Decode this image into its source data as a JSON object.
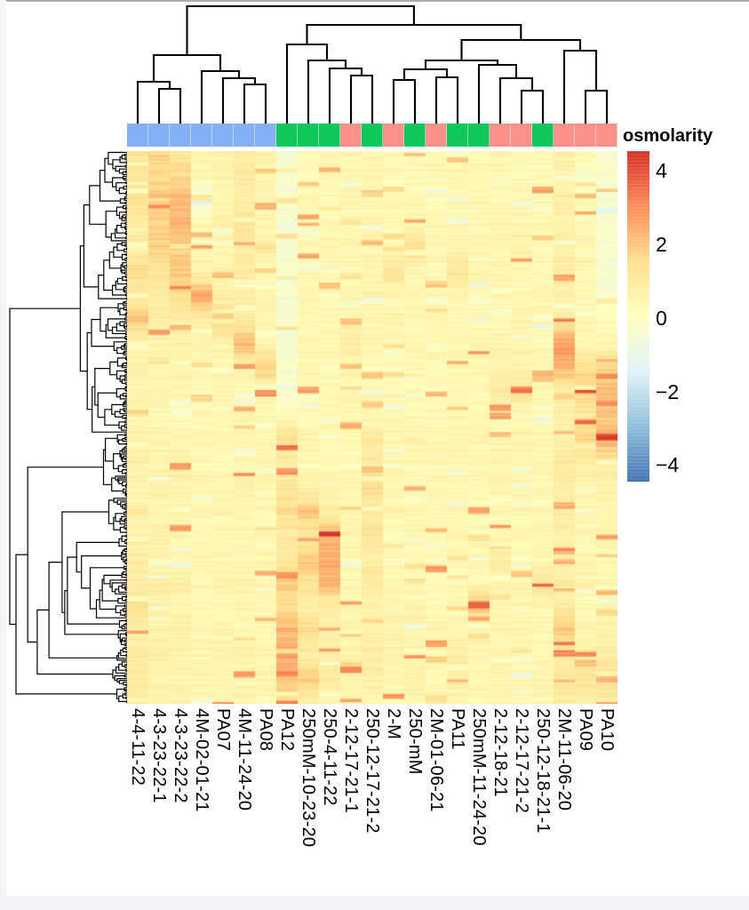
{
  "window": {
    "top_edge_color": "#ACACAE",
    "gutter_color": "#F5F5F8"
  },
  "chart_data": {
    "type": "heatmap",
    "title": "",
    "annotation_title": "osmolarity",
    "annotation_colors": {
      "blue": "#85B1F4",
      "green": "#10C75C",
      "salmon": "#FA9289"
    },
    "columns": [
      {
        "label": "4-4-11-22",
        "group": "blue"
      },
      {
        "label": "4-3-23-22-1",
        "group": "blue"
      },
      {
        "label": "4-3-23-22-2",
        "group": "blue"
      },
      {
        "label": "4M-02-01-21",
        "group": "blue"
      },
      {
        "label": "PA07",
        "group": "blue"
      },
      {
        "label": "4M-11-24-20",
        "group": "blue"
      },
      {
        "label": "PA08",
        "group": "blue"
      },
      {
        "label": "PA12",
        "group": "green"
      },
      {
        "label": "250mM-10-23-20",
        "group": "green"
      },
      {
        "label": "250-4-11-22",
        "group": "green"
      },
      {
        "label": "2-12-17-21-1",
        "group": "salmon"
      },
      {
        "label": "250-12-17-21-2",
        "group": "green"
      },
      {
        "label": "2-M",
        "group": "salmon"
      },
      {
        "label": "250-mM",
        "group": "green"
      },
      {
        "label": "2M-01-06-21",
        "group": "salmon"
      },
      {
        "label": "PA11",
        "group": "green"
      },
      {
        "label": "250mM-11-24-20",
        "group": "green"
      },
      {
        "label": "2-12-18-21",
        "group": "salmon"
      },
      {
        "label": "2-12-17-21-2",
        "group": "salmon"
      },
      {
        "label": "250-12-18-21-1",
        "group": "green"
      },
      {
        "label": "2M-11-06-20",
        "group": "salmon"
      },
      {
        "label": "PA09",
        "group": "salmon"
      },
      {
        "label": "PA10",
        "group": "salmon"
      }
    ],
    "colorbar": {
      "tick_labels": [
        "4",
        "2",
        "0",
        "−2",
        "−4"
      ],
      "tick_values": [
        4,
        2,
        0,
        -2,
        -4
      ],
      "domain": [
        -4.45,
        4.53
      ],
      "palette": [
        "#D73027",
        "#FC8D59",
        "#FEE090",
        "#FFFFBF",
        "#E0F3F8",
        "#91BFDB",
        "#4575B4"
      ]
    },
    "column_dendrogram": {
      "h": 7,
      "c": [
        {
          "h": 62,
          "c": [
            {
              "h": 92,
              "c": [
                {
                  "leaf": 0
                },
                {
                  "h": 100,
                  "c": [
                    {
                      "leaf": 1
                    },
                    {
                      "leaf": 2
                    }
                  ]
                }
              ]
            },
            {
              "h": 80,
              "c": [
                {
                  "leaf": 3
                },
                {
                  "h": 88,
                  "c": [
                    {
                      "leaf": 4
                    },
                    {
                      "h": 95,
                      "c": [
                        {
                          "leaf": 5
                        },
                        {
                          "leaf": 6
                        }
                      ]
                    }
                  ]
                }
              ]
            }
          ]
        },
        {
          "h": 28,
          "c": [
            {
              "h": 50,
              "c": [
                {
                  "leaf": 7
                },
                {
                  "h": 68,
                  "c": [
                    {
                      "leaf": 8
                    },
                    {
                      "h": 77,
                      "c": [
                        {
                          "leaf": 9
                        },
                        {
                          "h": 85,
                          "c": [
                            {
                              "leaf": 10
                            },
                            {
                              "leaf": 11
                            }
                          ]
                        }
                      ]
                    }
                  ]
                }
              ]
            },
            {
              "h": 45,
              "c": [
                {
                  "h": 68,
                  "c": [
                    {
                      "h": 78,
                      "c": [
                        {
                          "h": 90,
                          "c": [
                            {
                              "leaf": 12
                            },
                            {
                              "leaf": 13
                            }
                          ]
                        },
                        {
                          "h": 87,
                          "c": [
                            {
                              "leaf": 14
                            },
                            {
                              "leaf": 15
                            }
                          ]
                        }
                      ]
                    },
                    {
                      "h": 73,
                      "c": [
                        {
                          "leaf": 16
                        },
                        {
                          "h": 88,
                          "c": [
                            {
                              "leaf": 17
                            },
                            {
                              "h": 102,
                              "c": [
                                {
                                  "leaf": 18
                                },
                                {
                                  "leaf": 19
                                }
                              ]
                            }
                          ]
                        }
                      ]
                    }
                  ]
                },
                {
                  "h": 57,
                  "c": [
                    {
                      "leaf": 20
                    },
                    {
                      "h": 102,
                      "c": [
                        {
                          "leaf": 21
                        },
                        {
                          "leaf": 22
                        }
                      ]
                    }
                  ]
                }
              ]
            }
          ]
        }
      ]
    },
    "row_band_values_by_column": [
      [
        1.3,
        1.1,
        1.4,
        0.9,
        1.0,
        1.6,
        0.8,
        2.1,
        0.5,
        0.7,
        0.6,
        0.5,
        0.6,
        0.8,
        0.5,
        0.9,
        0.6,
        1.1,
        0.8,
        1.4,
        0.7,
        0.9,
        1.0,
        0.8
      ],
      [
        1.8,
        1.5,
        2.0,
        1.7,
        1.9,
        1.2,
        1.0,
        0.8,
        0.6,
        0.5,
        0.6,
        0.4,
        0.5,
        0.6,
        0.7,
        0.5,
        0.8,
        0.6,
        0.9,
        0.7,
        0.6,
        0.8,
        0.5,
        0.7
      ],
      [
        1.2,
        1.6,
        2.2,
        2.4,
        1.8,
        2.0,
        1.4,
        0.9,
        0.7,
        0.5,
        0.6,
        0.5,
        0.4,
        0.6,
        0.5,
        0.7,
        0.6,
        0.5,
        0.8,
        0.6,
        0.7,
        0.5,
        0.6,
        0.5
      ],
      [
        0.6,
        0.4,
        -0.6,
        0.5,
        0.7,
        0.5,
        2.6,
        0.8,
        0.5,
        0.3,
        0.4,
        0.5,
        0.3,
        0.4,
        0.5,
        0.4,
        0.3,
        0.5,
        0.4,
        0.3,
        0.5,
        0.4,
        0.5,
        0.4
      ],
      [
        0.7,
        0.5,
        0.6,
        0.8,
        0.5,
        0.6,
        0.7,
        1.9,
        0.6,
        0.4,
        0.5,
        0.4,
        0.5,
        0.3,
        0.4,
        0.5,
        0.4,
        0.5,
        0.6,
        0.4,
        0.5,
        0.6,
        0.5,
        0.4
      ],
      [
        0.9,
        1.1,
        0.8,
        1.3,
        0.9,
        1.0,
        0.8,
        0.9,
        2.3,
        0.6,
        0.5,
        0.6,
        0.5,
        0.4,
        0.6,
        0.5,
        0.4,
        0.5,
        0.6,
        0.5,
        0.4,
        0.6,
        0.5,
        0.6
      ],
      [
        0.6,
        0.5,
        0.7,
        0.5,
        0.6,
        0.4,
        0.5,
        0.6,
        0.5,
        1.8,
        0.5,
        0.4,
        0.3,
        0.5,
        0.4,
        0.3,
        0.4,
        0.5,
        0.4,
        0.5,
        0.3,
        0.4,
        0.5,
        0.4
      ],
      [
        -0.3,
        -0.4,
        -0.2,
        -0.5,
        -0.3,
        -0.4,
        -0.2,
        -0.3,
        -0.4,
        -0.2,
        -0.3,
        0.2,
        1.4,
        0.8,
        1.2,
        1.6,
        0.9,
        1.3,
        1.8,
        1.5,
        2.2,
        2.6,
        2.0,
        1.2
      ],
      [
        0.4,
        0.3,
        0.5,
        0.4,
        0.3,
        0.4,
        0.5,
        0.3,
        0.4,
        0.5,
        0.4,
        0.3,
        0.5,
        0.4,
        0.6,
        2.1,
        1.0,
        2.0,
        1.2,
        0.8,
        1.5,
        0.9,
        1.7,
        0.8
      ],
      [
        0.4,
        0.5,
        0.3,
        0.4,
        0.5,
        0.4,
        0.3,
        0.5,
        0.4,
        0.3,
        0.4,
        0.5,
        0.3,
        0.4,
        0.5,
        0.8,
        2.4,
        2.6,
        2.2,
        1.0,
        0.6,
        0.8,
        0.9,
        0.6
      ],
      [
        0.5,
        0.4,
        0.6,
        0.4,
        0.5,
        0.3,
        0.4,
        0.6,
        0.9,
        0.5,
        0.4,
        0.5,
        0.4,
        0.3,
        0.5,
        0.4,
        0.6,
        0.5,
        0.4,
        0.5,
        0.4,
        0.6,
        0.5,
        0.4
      ],
      [
        0.4,
        0.5,
        0.4,
        0.6,
        0.5,
        0.4,
        0.5,
        0.4,
        0.5,
        0.4,
        0.6,
        0.5,
        1.2,
        0.8,
        1.4,
        1.0,
        1.3,
        0.9,
        1.1,
        0.8,
        0.6,
        0.9,
        0.7,
        0.5
      ],
      [
        0.3,
        0.4,
        0.5,
        0.4,
        0.3,
        1.3,
        0.4,
        0.5,
        0.4,
        0.3,
        0.4,
        0.5,
        0.4,
        0.6,
        0.4,
        0.5,
        0.3,
        0.4,
        0.5,
        0.4,
        0.6,
        0.5,
        0.4,
        0.5
      ],
      [
        0.4,
        0.3,
        0.5,
        0.4,
        1.5,
        0.4,
        0.5,
        0.3,
        0.4,
        0.5,
        0.4,
        0.3,
        0.5,
        0.4,
        0.3,
        0.5,
        0.4,
        0.5,
        0.3,
        0.6,
        0.4,
        0.5,
        0.8,
        0.4
      ],
      [
        0.3,
        0.4,
        0.3,
        0.5,
        0.4,
        0.3,
        0.4,
        0.5,
        0.3,
        0.4,
        0.3,
        0.5,
        0.4,
        0.3,
        0.5,
        0.4,
        0.3,
        0.5,
        0.4,
        0.3,
        0.5,
        0.4,
        0.3,
        0.5
      ],
      [
        0.4,
        0.5,
        0.3,
        0.4,
        0.6,
        1.2,
        0.4,
        0.3,
        0.5,
        0.4,
        0.3,
        0.5,
        0.4,
        0.5,
        0.3,
        0.4,
        0.5,
        0.4,
        0.3,
        0.5,
        0.4,
        0.9,
        0.8,
        0.4
      ],
      [
        0.3,
        0.4,
        0.5,
        0.3,
        0.4,
        0.5,
        0.4,
        0.3,
        0.5,
        0.4,
        0.3,
        0.4,
        0.5,
        0.4,
        0.3,
        0.5,
        0.4,
        0.5,
        0.3,
        2.5,
        0.6,
        0.4,
        0.5,
        0.4
      ],
      [
        0.5,
        0.4,
        0.3,
        0.6,
        0.4,
        0.5,
        0.4,
        0.3,
        0.5,
        0.6,
        1.1,
        0.5,
        0.4,
        0.6,
        0.5,
        0.4,
        0.5,
        1.0,
        0.6,
        0.5,
        0.4,
        0.5,
        0.6,
        0.4
      ],
      [
        0.4,
        0.3,
        0.5,
        0.4,
        0.6,
        0.4,
        0.3,
        0.5,
        0.4,
        0.6,
        1.3,
        0.4,
        0.5,
        0.3,
        0.4,
        0.5,
        0.4,
        0.3,
        0.5,
        0.4,
        0.6,
        0.4,
        0.5,
        0.3
      ],
      [
        0.3,
        0.4,
        0.3,
        0.5,
        0.4,
        0.3,
        0.5,
        0.4,
        0.3,
        0.4,
        0.5,
        0.3,
        0.4,
        0.5,
        0.4,
        0.3,
        0.5,
        0.4,
        1.2,
        0.5,
        0.4,
        0.3,
        0.5,
        0.4
      ],
      [
        0.8,
        0.6,
        0.9,
        0.7,
        0.8,
        1.0,
        0.7,
        0.9,
        2.8,
        2.4,
        0.8,
        0.9,
        0.7,
        1.0,
        0.8,
        0.9,
        0.7,
        0.8,
        1.0,
        0.9,
        1.9,
        0.8,
        1.1,
        0.9
      ],
      [
        0.3,
        -0.2,
        0.4,
        0.3,
        0.5,
        0.4,
        0.3,
        0.5,
        0.4,
        1.5,
        1.8,
        1.2,
        1.6,
        0.8,
        0.5,
        0.6,
        0.4,
        0.5,
        0.6,
        0.4,
        0.5,
        0.7,
        1.3,
        0.6
      ],
      [
        -0.3,
        -0.2,
        -0.4,
        -0.3,
        -0.2,
        -0.4,
        -0.3,
        0.2,
        0.4,
        1.7,
        2.2,
        1.9,
        2.4,
        1.1,
        0.6,
        0.5,
        0.6,
        0.4,
        0.5,
        0.6,
        0.5,
        0.8,
        1.4,
        0.8
      ]
    ]
  }
}
